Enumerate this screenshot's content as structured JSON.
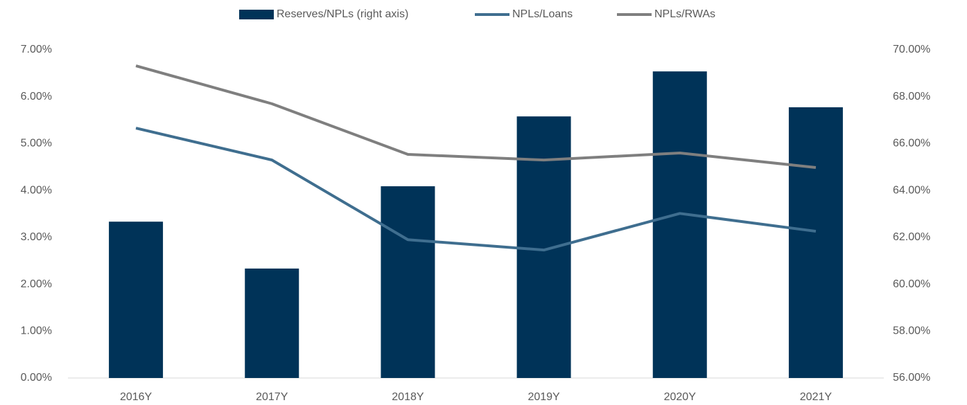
{
  "chart_data": {
    "type": "bar-line",
    "categories": [
      "2016Y",
      "2017Y",
      "2018Y",
      "2019Y",
      "2020Y",
      "2021Y"
    ],
    "series": [
      {
        "name": "Reserves/NPLs (right axis)",
        "type": "bar",
        "axis": "y2",
        "color": "#003358",
        "values": [
          62.67,
          60.67,
          64.18,
          67.16,
          69.08,
          67.55
        ]
      },
      {
        "name": "NPLs/Loans",
        "type": "line",
        "color": "#3f6e8f",
        "values": [
          5.33,
          4.65,
          2.95,
          2.73,
          3.51,
          3.13
        ]
      },
      {
        "name": "NPLs/RWAs",
        "type": "line",
        "color": "#7f7f7f",
        "values": [
          6.66,
          5.85,
          4.77,
          4.65,
          4.8,
          4.49
        ]
      }
    ],
    "ylim": [
      0,
      7
    ],
    "yticks": [
      {
        "value": 0,
        "label": "0.00%"
      },
      {
        "value": 1,
        "label": "1.00%"
      },
      {
        "value": 2,
        "label": "2.00%"
      },
      {
        "value": 3,
        "label": "3.00%"
      },
      {
        "value": 4,
        "label": "4.00%"
      },
      {
        "value": 5,
        "label": "5.00%"
      },
      {
        "value": 6,
        "label": "6.00%"
      },
      {
        "value": 7,
        "label": "7.00%"
      }
    ],
    "y2lim": [
      56,
      70
    ],
    "y2ticks": [
      {
        "value": 56,
        "label": "56.00%"
      },
      {
        "value": 58,
        "label": "58.00%"
      },
      {
        "value": 60,
        "label": "60.00%"
      },
      {
        "value": 62,
        "label": "62.00%"
      },
      {
        "value": 64,
        "label": "64.00%"
      },
      {
        "value": 66,
        "label": "66.00%"
      },
      {
        "value": 68,
        "label": "68.00%"
      },
      {
        "value": 70,
        "label": "70.00%"
      }
    ],
    "grid": false,
    "legend": "top"
  }
}
